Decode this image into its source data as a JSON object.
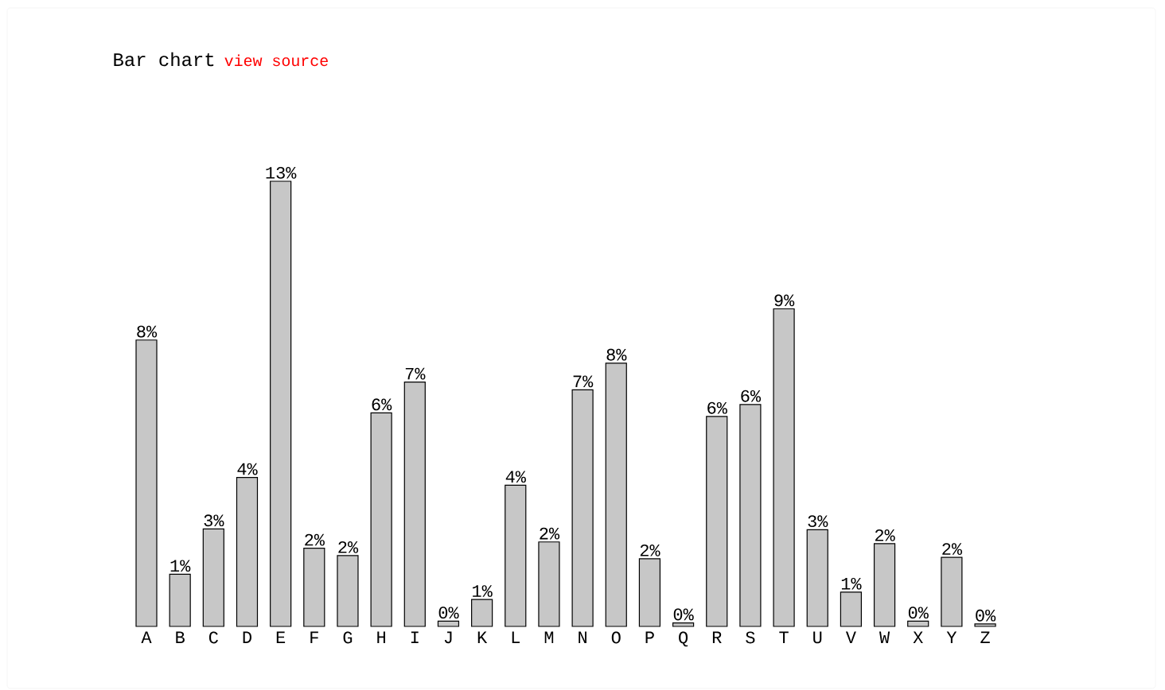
{
  "chart_data": {
    "type": "bar",
    "title": "Bar chart",
    "subtitle": "view source",
    "categories": [
      "A",
      "B",
      "C",
      "D",
      "E",
      "F",
      "G",
      "H",
      "I",
      "J",
      "K",
      "L",
      "M",
      "N",
      "O",
      "P",
      "Q",
      "R",
      "S",
      "T",
      "U",
      "V",
      "W",
      "X",
      "Y",
      "Z"
    ],
    "values": [
      8.17,
      1.49,
      2.78,
      4.25,
      12.7,
      2.23,
      2.02,
      6.09,
      6.97,
      0.15,
      0.77,
      4.03,
      2.41,
      6.75,
      7.51,
      1.93,
      0.1,
      5.99,
      6.33,
      9.06,
      2.76,
      0.98,
      2.36,
      0.15,
      1.97,
      0.07
    ],
    "value_labels": [
      "8%",
      "1%",
      "3%",
      "4%",
      "13%",
      "2%",
      "2%",
      "6%",
      "7%",
      "0%",
      "1%",
      "4%",
      "2%",
      "7%",
      "8%",
      "2%",
      "0%",
      "6%",
      "6%",
      "9%",
      "3%",
      "1%",
      "2%",
      "0%",
      "2%",
      "0%"
    ],
    "color": "#000000"
  }
}
